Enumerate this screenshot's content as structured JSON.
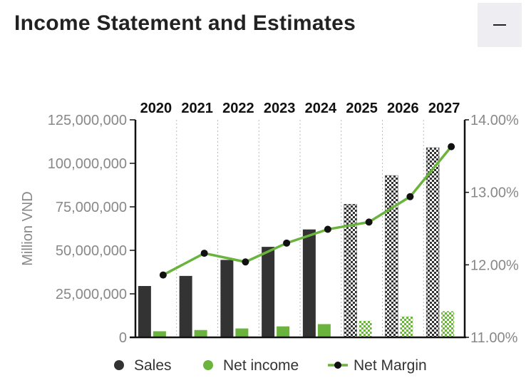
{
  "header": {
    "title": "Income Statement and Estimates",
    "collapse_icon": "minus-icon"
  },
  "chart_data": {
    "type": "bar",
    "categories": [
      "2020",
      "2021",
      "2022",
      "2023",
      "2024",
      "2025",
      "2026",
      "2027"
    ],
    "estimate_from_index": 5,
    "series": [
      {
        "name": "Sales",
        "type": "bar",
        "axis": "left",
        "color": "#333333",
        "values": [
          29500000,
          35300000,
          44500000,
          52000000,
          62000000,
          76500000,
          93000000,
          109000000
        ]
      },
      {
        "name": "Net income",
        "type": "bar",
        "axis": "left",
        "color": "#6ab33c",
        "values": [
          3500000,
          4200000,
          5100000,
          6300000,
          7600000,
          9500000,
          12000000,
          15000000
        ]
      },
      {
        "name": "Net Margin",
        "type": "line",
        "axis": "right",
        "color": "#6ab33c",
        "marker_color": "#111111",
        "values": [
          11.86,
          12.16,
          12.04,
          12.3,
          12.49,
          12.59,
          12.94,
          13.63
        ]
      }
    ],
    "ylabel": "Million VND",
    "ylim": [
      0,
      125000000
    ],
    "yticks": [
      "0",
      "25,000,000",
      "50,000,000",
      "75,000,000",
      "100,000,000",
      "125,000,000"
    ],
    "y2lim": [
      11.0,
      14.0
    ],
    "y2ticks": [
      "11.00%",
      "12.00%",
      "13.00%",
      "14.00%"
    ],
    "grid": "vertical-dotted",
    "legend_position": "bottom"
  }
}
